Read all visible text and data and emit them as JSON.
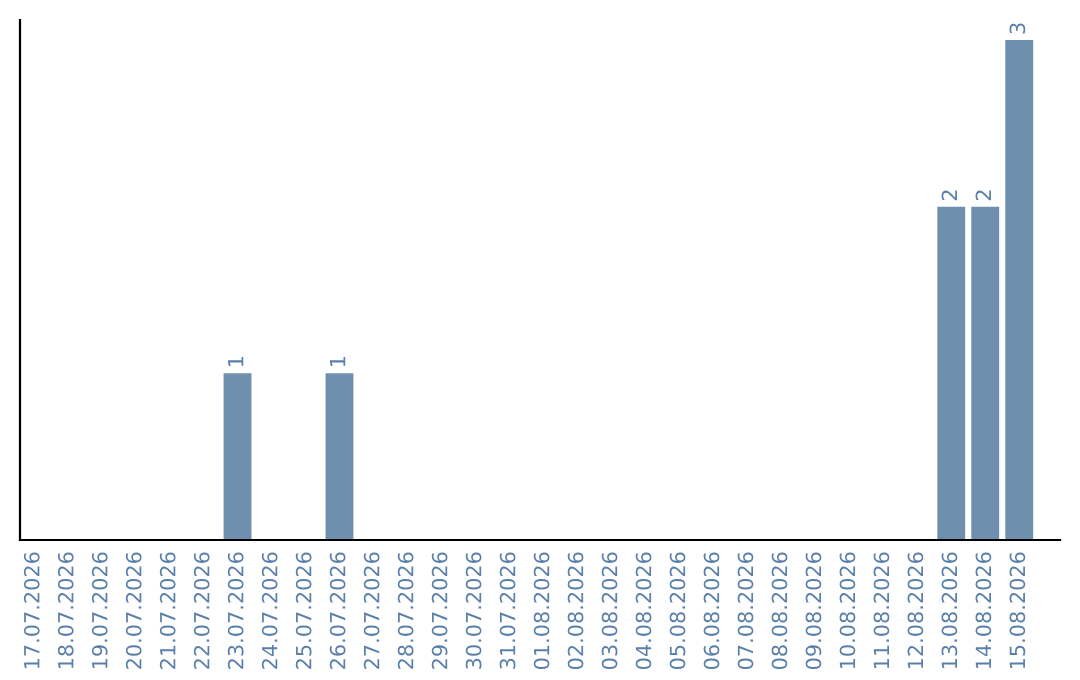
{
  "chart_data": {
    "type": "bar",
    "categories": [
      "17.07.2026",
      "18.07.2026",
      "19.07.2026",
      "20.07.2026",
      "21.07.2026",
      "22.07.2026",
      "23.07.2026",
      "24.07.2026",
      "25.07.2026",
      "26.07.2026",
      "27.07.2026",
      "28.07.2026",
      "29.07.2026",
      "30.07.2026",
      "31.07.2026",
      "01.08.2026",
      "02.08.2026",
      "03.08.2026",
      "04.08.2026",
      "05.08.2026",
      "06.08.2026",
      "07.08.2026",
      "08.08.2026",
      "09.08.2026",
      "10.08.2026",
      "11.08.2026",
      "12.08.2026",
      "13.08.2026",
      "14.08.2026",
      "15.08.2026"
    ],
    "values": [
      0,
      0,
      0,
      0,
      0,
      0,
      1,
      0,
      0,
      1,
      0,
      0,
      0,
      0,
      0,
      0,
      0,
      0,
      0,
      0,
      0,
      0,
      0,
      0,
      0,
      0,
      0,
      2,
      2,
      3
    ],
    "value_labels": [
      null,
      null,
      null,
      null,
      null,
      null,
      "1",
      null,
      null,
      "1",
      null,
      null,
      null,
      null,
      null,
      null,
      null,
      null,
      null,
      null,
      null,
      null,
      null,
      null,
      null,
      null,
      null,
      "2",
      "2",
      "3"
    ],
    "color": "#6f8fae",
    "tick_labels": "x",
    "grid": false
  }
}
